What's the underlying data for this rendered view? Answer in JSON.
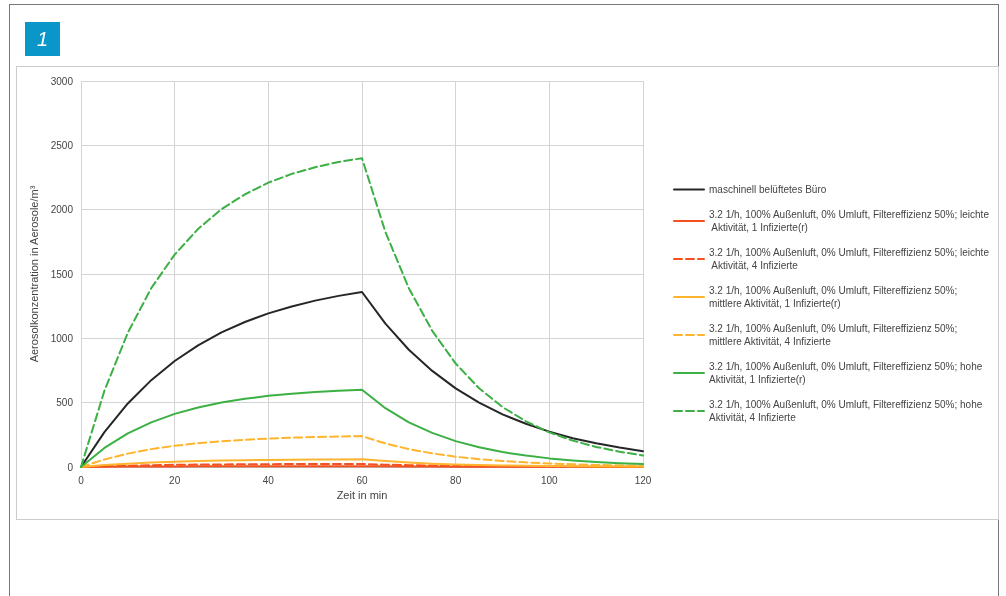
{
  "chart_data": {
    "type": "line",
    "title": "1",
    "xlabel": "Zeit in min",
    "ylabel": "Aerosolkonzentration in Aerosole/m³",
    "x": [
      0,
      5,
      10,
      15,
      20,
      25,
      30,
      35,
      40,
      45,
      50,
      55,
      60,
      65,
      70,
      75,
      80,
      85,
      90,
      95,
      100,
      105,
      110,
      115,
      120
    ],
    "xlim": [
      0,
      120
    ],
    "xticks": [
      0,
      20,
      40,
      60,
      80,
      100,
      120
    ],
    "ylim": [
      0,
      3000
    ],
    "yticks": [
      0,
      500,
      1000,
      1500,
      2000,
      2500,
      3000
    ],
    "grid": true,
    "legend": "right",
    "marker": "none",
    "series": [
      {
        "name": "maschinell belüftetes Büro",
        "color": "#262626",
        "line_style": "solid",
        "values": [
          0,
          271,
          494,
          675,
          824,
          945,
          1046,
          1127,
          1194,
          1248,
          1293,
          1330,
          1360,
          1114,
          911,
          747,
          611,
          500,
          409,
          336,
          275,
          224,
          184,
          151,
          123
        ]
      },
      {
        "name": "3.2 1/h, 100% Außenluft, 0% Umluft, Filtereffizienz 50%; leichte Aktivität, 1 Infizierte(r)",
        "color": "#f5501e",
        "line_style": "solid",
        "values": [
          0,
          1,
          3,
          3,
          4,
          5,
          5,
          5,
          6,
          6,
          6,
          6,
          6,
          5,
          3,
          3,
          2,
          2,
          1,
          1,
          1,
          1,
          0,
          0,
          0
        ]
      },
      {
        "name": "3.2 1/h, 100% Außenluft, 0% Umluft, Filtereffizienz 50%; leichte Aktivität, 4 Infizierte",
        "color": "#f5501e",
        "line_style": "dashed",
        "values": [
          0,
          6,
          10,
          14,
          17,
          19,
          20,
          21,
          22,
          23,
          24,
          24,
          24,
          18,
          14,
          11,
          8,
          6,
          5,
          4,
          3,
          2,
          2,
          1,
          1
        ]
      },
      {
        "name": "3.2 1/h, 100% Außenluft, 0% Umluft, Filtereffizienz 50%; mittlere Aktivität, 1 Infizierte(r)",
        "color": "#ffb42d",
        "line_style": "solid",
        "values": [
          0,
          15,
          26,
          35,
          41,
          46,
          50,
          53,
          55,
          57,
          58,
          59,
          60,
          46,
          35,
          26,
          20,
          15,
          12,
          9,
          7,
          5,
          4,
          3,
          2
        ]
      },
      {
        "name": "3.2 1/h, 100% Außenluft, 0% Umluft, Filtereffizienz 50%; mittlere Aktivität, 4 Infizierte",
        "color": "#ffb42d",
        "line_style": "dashed",
        "values": [
          0,
          59,
          104,
          139,
          165,
          185,
          200,
          212,
          221,
          228,
          233,
          237,
          240,
          183,
          139,
          106,
          80,
          61,
          47,
          36,
          27,
          21,
          16,
          12,
          9
        ]
      },
      {
        "name": "3.2 1/h, 100% Außenluft, 0% Umluft, Filtereffizienz 50%; hohe Aktivität, 1 Infizierte(r)",
        "color": "#3cb044",
        "line_style": "solid",
        "values": [
          0,
          148,
          261,
          347,
          413,
          463,
          501,
          530,
          553,
          569,
          583,
          593,
          600,
          457,
          347,
          265,
          201,
          153,
          116,
          89,
          67,
          51,
          39,
          30,
          23
        ]
      },
      {
        "name": "3.2 1/h, 100% Außenluft, 0% Umluft, Filtereffizienz 50%; hohe Aktivität, 4 Infizierte",
        "color": "#3cb044",
        "line_style": "dashed",
        "values": [
          0,
          593,
          1044,
          1390,
          1651,
          1850,
          2004,
          2119,
          2210,
          2278,
          2330,
          2371,
          2400,
          1826,
          1390,
          1058,
          804,
          612,
          466,
          355,
          269,
          205,
          156,
          119,
          90
        ]
      }
    ]
  }
}
